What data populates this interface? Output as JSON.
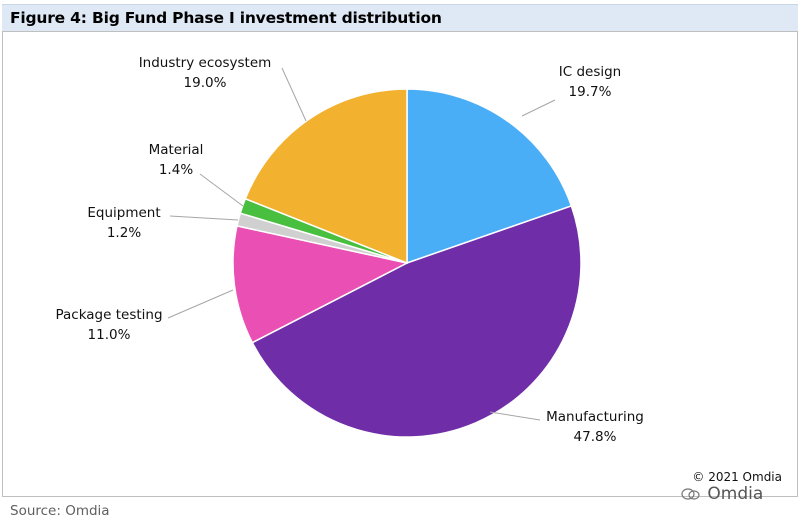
{
  "figure": {
    "title": "Figure 4: Big Fund Phase I investment distribution",
    "source": "Source: Omdia",
    "copyright": "© 2021 Omdia",
    "watermark": "Omdia"
  },
  "chart_data": {
    "type": "pie",
    "start_angle_deg": 0,
    "direction": "clockwise",
    "slices": [
      {
        "label": "IC design",
        "value": 19.7,
        "value_label": "19.7%",
        "color": "#4aaef7"
      },
      {
        "label": "Manufacturing",
        "value": 47.8,
        "value_label": "47.8%",
        "color": "#6f2da8"
      },
      {
        "label": "Package testing",
        "value": 11.0,
        "value_label": "11.0%",
        "color": "#ea4fb3"
      },
      {
        "label": "Equipment",
        "value": 1.2,
        "value_label": "1.2%",
        "color": "#d0d0d0"
      },
      {
        "label": "Material",
        "value": 1.4,
        "value_label": "1.4%",
        "color": "#49bf3f"
      },
      {
        "label": "Industry ecosystem",
        "value": 19.0,
        "value_label": "19.0%",
        "color": "#f2b12e"
      }
    ]
  }
}
